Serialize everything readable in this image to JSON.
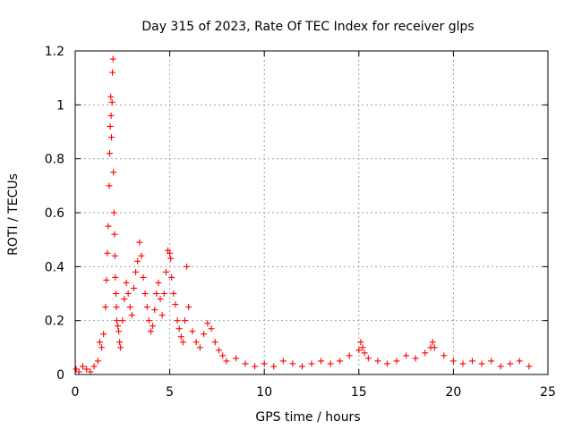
{
  "chart_data": {
    "type": "scatter",
    "title": "Day 315 of 2023, Rate Of TEC Index for receiver glps",
    "xlabel": "GPS time / hours",
    "ylabel": "ROTI / TECUs",
    "xlim": [
      0,
      25
    ],
    "ylim": [
      0,
      1.2
    ],
    "xticks": [
      0,
      5,
      10,
      15,
      20,
      25
    ],
    "xtick_labels": [
      "0",
      "5",
      "10",
      "15",
      "20",
      "25"
    ],
    "yticks": [
      0,
      0.2,
      0.4,
      0.6,
      0.8,
      1.0,
      1.2
    ],
    "ytick_labels": [
      "0",
      "0.2",
      "0.4",
      "0.6",
      "0.8",
      "1",
      "1.2"
    ],
    "grid": true,
    "marker": "+",
    "color": "#ff0000",
    "series": [
      {
        "name": "ROTI",
        "x": [
          0.05,
          0.2,
          0.4,
          0.6,
          0.8,
          1.0,
          1.2,
          1.3,
          1.4,
          1.5,
          1.6,
          1.65,
          1.7,
          1.75,
          1.8,
          1.82,
          1.85,
          1.88,
          1.9,
          1.92,
          1.95,
          1.97,
          2.0,
          2.02,
          2.05,
          2.08,
          2.1,
          2.12,
          2.15,
          2.18,
          2.2,
          2.25,
          2.3,
          2.35,
          2.4,
          2.5,
          2.6,
          2.7,
          2.8,
          2.9,
          3.0,
          3.1,
          3.2,
          3.3,
          3.4,
          3.5,
          3.6,
          3.7,
          3.8,
          3.9,
          4.0,
          4.1,
          4.2,
          4.3,
          4.4,
          4.5,
          4.6,
          4.7,
          4.8,
          4.9,
          5.0,
          5.05,
          5.1,
          5.2,
          5.3,
          5.4,
          5.5,
          5.6,
          5.7,
          5.8,
          5.9,
          6.0,
          6.2,
          6.4,
          6.6,
          6.8,
          7.0,
          7.2,
          7.4,
          7.6,
          7.8,
          8.0,
          8.5,
          9.0,
          9.5,
          10.0,
          10.5,
          11.0,
          11.5,
          12.0,
          12.5,
          13.0,
          13.5,
          14.0,
          14.5,
          15.0,
          15.1,
          15.2,
          15.3,
          15.5,
          16.0,
          16.5,
          17.0,
          17.5,
          18.0,
          18.5,
          18.8,
          18.9,
          19.0,
          19.5,
          20.0,
          20.5,
          21.0,
          21.5,
          22.0,
          22.5,
          23.0,
          23.5,
          24.0
        ],
        "y": [
          0.02,
          0.01,
          0.03,
          0.02,
          0.01,
          0.03,
          0.05,
          0.12,
          0.1,
          0.15,
          0.25,
          0.35,
          0.45,
          0.55,
          0.7,
          0.82,
          0.92,
          1.03,
          0.96,
          0.88,
          1.01,
          1.12,
          1.17,
          0.75,
          0.6,
          0.52,
          0.44,
          0.36,
          0.3,
          0.25,
          0.2,
          0.18,
          0.16,
          0.12,
          0.1,
          0.2,
          0.28,
          0.34,
          0.3,
          0.25,
          0.22,
          0.32,
          0.38,
          0.42,
          0.49,
          0.44,
          0.36,
          0.3,
          0.25,
          0.2,
          0.16,
          0.18,
          0.24,
          0.3,
          0.34,
          0.28,
          0.22,
          0.3,
          0.38,
          0.46,
          0.45,
          0.43,
          0.36,
          0.3,
          0.26,
          0.2,
          0.17,
          0.14,
          0.12,
          0.2,
          0.4,
          0.25,
          0.16,
          0.12,
          0.1,
          0.15,
          0.19,
          0.17,
          0.12,
          0.09,
          0.07,
          0.05,
          0.06,
          0.04,
          0.03,
          0.04,
          0.03,
          0.05,
          0.04,
          0.03,
          0.04,
          0.05,
          0.04,
          0.05,
          0.07,
          0.09,
          0.12,
          0.1,
          0.08,
          0.06,
          0.05,
          0.04,
          0.05,
          0.07,
          0.06,
          0.08,
          0.1,
          0.12,
          0.1,
          0.07,
          0.05,
          0.04,
          0.05,
          0.04,
          0.05,
          0.03,
          0.04,
          0.05,
          0.03
        ]
      }
    ]
  }
}
